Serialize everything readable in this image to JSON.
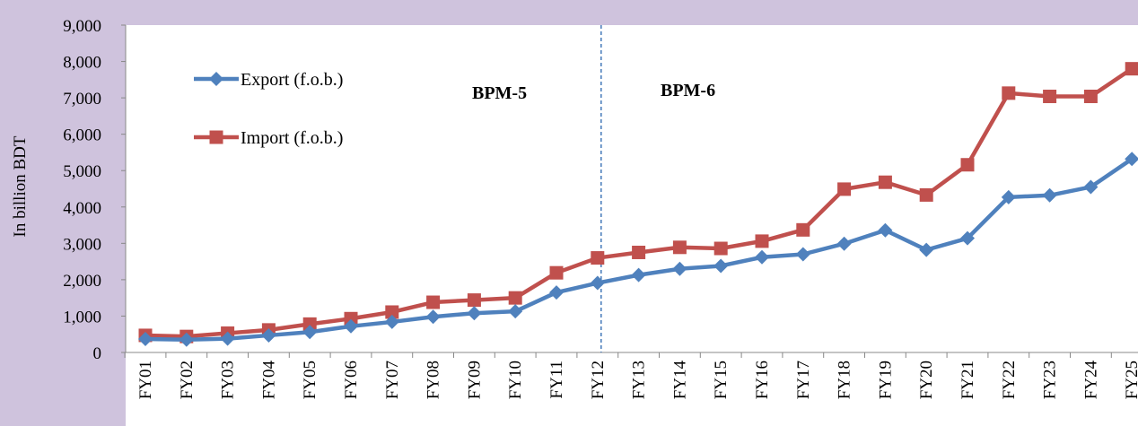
{
  "chart_data": {
    "type": "line",
    "title": "",
    "xlabel": "",
    "ylabel": "In billion BDT",
    "categories": [
      "FY01",
      "FY02",
      "FY03",
      "FY04",
      "FY05",
      "FY06",
      "FY07",
      "FY08",
      "FY09",
      "FY10",
      "FY11",
      "FY12",
      "FY13",
      "FY14",
      "FY15",
      "FY16",
      "FY17",
      "FY18",
      "FY19",
      "FY20",
      "FY21",
      "FY22",
      "FY23",
      "FY24",
      "FY25"
    ],
    "ylim": [
      0,
      9000
    ],
    "yticks": [
      0,
      1000,
      2000,
      3000,
      4000,
      5000,
      6000,
      7000,
      8000,
      9000
    ],
    "ytick_labels": [
      "0",
      "1,000",
      "2,000",
      "3,000",
      "4,000",
      "5,000",
      "6,000",
      "7,000",
      "8,000",
      "9,000"
    ],
    "grid": false,
    "legend_position": "top-left",
    "series": [
      {
        "name": "Export (f.o.b.)",
        "color": "#4f81bd",
        "marker": "diamond",
        "values": [
          370,
          350,
          380,
          470,
          560,
          720,
          840,
          980,
          1080,
          1130,
          1650,
          1910,
          2130,
          2300,
          2380,
          2620,
          2700,
          2990,
          3360,
          2820,
          3140,
          4270,
          4320,
          4550,
          5320
        ]
      },
      {
        "name": "Import (f.o.b.)",
        "color": "#c0504d",
        "marker": "square",
        "values": [
          470,
          440,
          530,
          620,
          780,
          930,
          1110,
          1380,
          1440,
          1500,
          2190,
          2600,
          2750,
          2890,
          2860,
          3060,
          3370,
          4490,
          4680,
          4330,
          5160,
          7130,
          7040,
          7040,
          7800
        ]
      }
    ],
    "annotations": [
      {
        "text": "BPM-5"
      },
      {
        "text": "BPM-6"
      }
    ],
    "divider_after_category": "FY12"
  }
}
